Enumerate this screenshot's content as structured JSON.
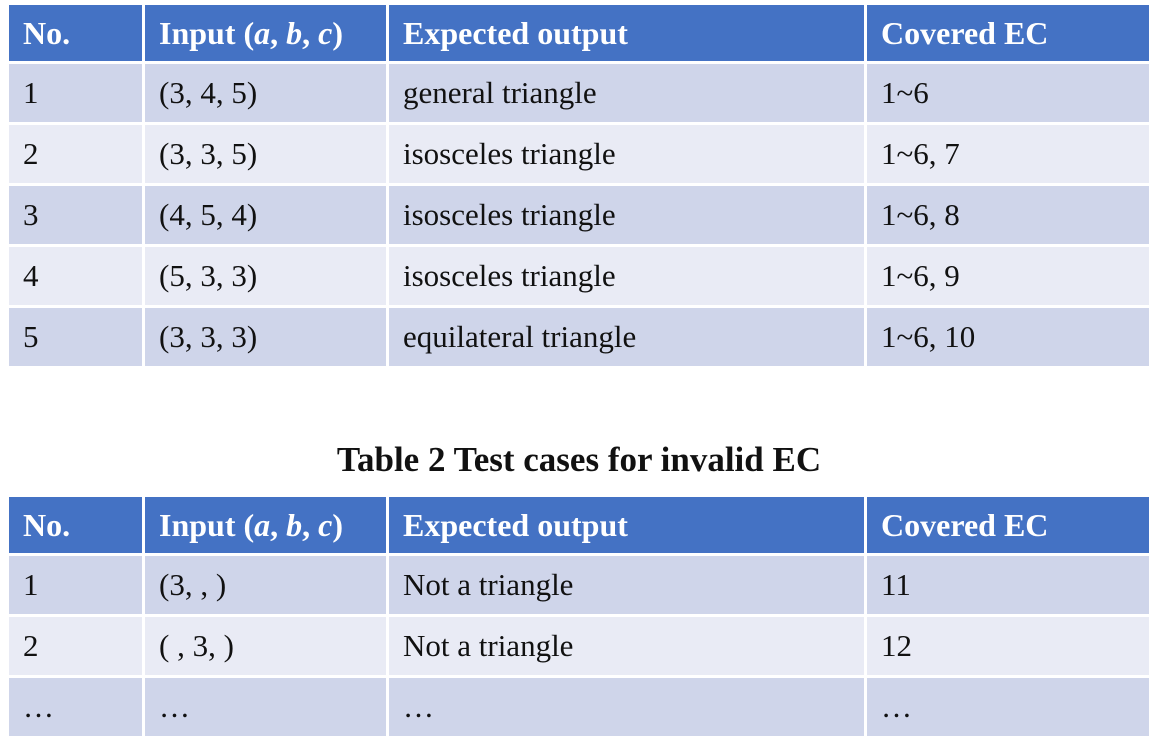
{
  "table1": {
    "headers": {
      "no": "No.",
      "input_prefix": "Input (",
      "var_a": "a",
      "sep1": ", ",
      "var_b": "b",
      "sep2": ", ",
      "var_c": "c",
      "input_suffix": ")",
      "expected": "Expected output",
      "covered": "Covered EC"
    },
    "rows": [
      {
        "no": "1",
        "input": "(3, 4, 5)",
        "expected": "general triangle",
        "covered": "1~6"
      },
      {
        "no": "2",
        "input": "(3, 3, 5)",
        "expected": "isosceles triangle",
        "covered": "1~6, 7"
      },
      {
        "no": "3",
        "input": "(4, 5, 4)",
        "expected": "isosceles triangle",
        "covered": "1~6, 8"
      },
      {
        "no": "4",
        "input": "(5, 3, 3)",
        "expected": "isosceles triangle",
        "covered": "1~6, 9"
      },
      {
        "no": "5",
        "input": "(3, 3, 3)",
        "expected": "equilateral triangle",
        "covered": "1~6, 10"
      }
    ]
  },
  "table2": {
    "caption": "Table 2 Test cases for invalid EC",
    "headers": {
      "no": "No.",
      "input_prefix": "Input (",
      "var_a": "a",
      "sep1": ", ",
      "var_b": "b",
      "sep2": ", ",
      "var_c": "c",
      "input_suffix": ")",
      "expected": "Expected output",
      "covered": "Covered EC"
    },
    "rows": [
      {
        "no": "1",
        "input": "(3, , )",
        "expected": "Not a triangle",
        "covered": "11"
      },
      {
        "no": "2",
        "input": "( , 3, )",
        "expected": "Not a triangle",
        "covered": "12"
      },
      {
        "no": "…",
        "input": "…",
        "expected": "…",
        "covered": "…"
      }
    ]
  },
  "colors": {
    "header_bg": "#4472c4",
    "row_dark": "#cfd5ea",
    "row_light": "#e9ebf5"
  }
}
